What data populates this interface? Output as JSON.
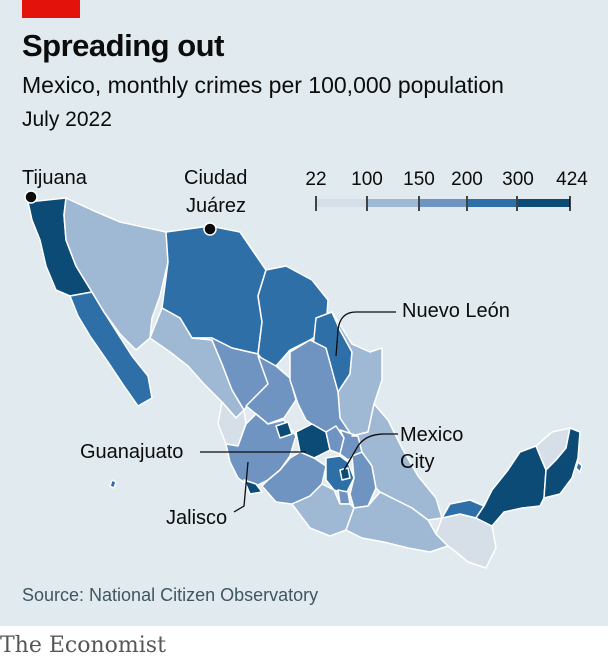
{
  "header": {
    "title": "Spreading out",
    "subtitle": "Mexico, monthly crimes per 100,000 population",
    "date": "July 2022"
  },
  "legend": {
    "breaks": [
      "22",
      "100",
      "150",
      "200",
      "300",
      "424"
    ],
    "colors": [
      "#d6dfe8",
      "#9fb8d4",
      "#6f94c1",
      "#2e6fa8",
      "#0b4b76"
    ]
  },
  "labels": {
    "tijuana": "Tijuana",
    "ciudad_juarez_line1": "Ciudad",
    "ciudad_juarez_line2": "Juárez",
    "nuevo_leon": "Nuevo León",
    "mexico_city_line1": "Mexico",
    "mexico_city_line2": "City",
    "guanajuato": "Guanajuato",
    "jalisco": "Jalisco"
  },
  "footer": {
    "source": "Source: National Citizen Observatory",
    "brand": "The Economist"
  }
}
